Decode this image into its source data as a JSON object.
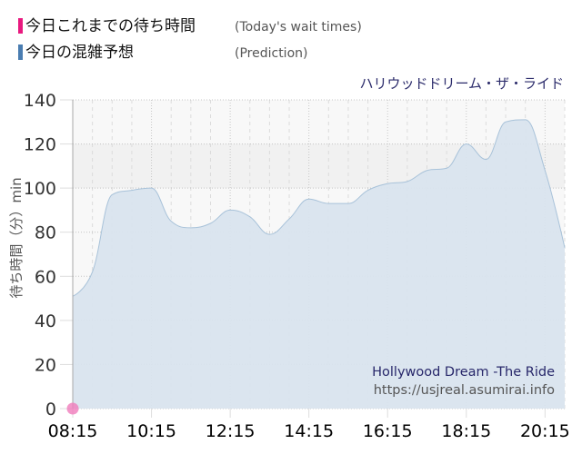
{
  "legend": {
    "items": [
      {
        "label": "今日これまでの待ち時間",
        "sub": "(Today's wait times)",
        "color": "#e8197f"
      },
      {
        "label": "今日の混雑予想",
        "sub": "(Prediction)",
        "color": "#4a7db1"
      }
    ]
  },
  "chart": {
    "title": "ハリウッドドリーム・ザ・ライド",
    "watermark_name": "Hollywood Dream -The Ride",
    "watermark_url": "https://usjreal.asumirai.info",
    "colors": {
      "area_fill": "#d9e4ee",
      "area_line": "#a8c2d9",
      "today_point": "#f07cbc",
      "band_dark": "#f1f1f1",
      "plot_bg": "#f8f8f8"
    }
  },
  "chart_data": {
    "type": "area",
    "title": "ハリウッドドリーム・ザ・ライド",
    "xlabel": "",
    "ylabel": "待ち時間（分）min",
    "ylim": [
      0,
      140
    ],
    "yticks": [
      0,
      20,
      40,
      60,
      80,
      100,
      120,
      140
    ],
    "xtick_labels": [
      "08:15",
      "10:15",
      "12:15",
      "14:15",
      "16:15",
      "18:15",
      "20:15"
    ],
    "grid": true,
    "legend_position": "top-left",
    "x": [
      "08:15",
      "08:45",
      "09:15",
      "09:45",
      "10:15",
      "10:45",
      "11:15",
      "11:45",
      "12:15",
      "12:45",
      "13:15",
      "13:45",
      "14:15",
      "14:45",
      "15:15",
      "15:45",
      "16:15",
      "16:45",
      "17:15",
      "17:45",
      "18:15",
      "18:45",
      "19:15",
      "19:45",
      "20:15",
      "20:45"
    ],
    "series": [
      {
        "name": "今日の混雑予想 (Prediction)",
        "type": "area",
        "values": [
          51,
          62,
          97,
          99,
          100,
          85,
          82,
          84,
          90,
          87,
          79,
          86,
          95,
          93,
          93,
          99,
          102,
          103,
          108,
          109,
          120,
          113,
          130,
          131,
          108,
          73
        ]
      },
      {
        "name": "今日これまでの待ち時間 (Today's wait times)",
        "type": "scatter",
        "points": [
          {
            "x": "08:15",
            "y": 0
          }
        ]
      }
    ]
  }
}
